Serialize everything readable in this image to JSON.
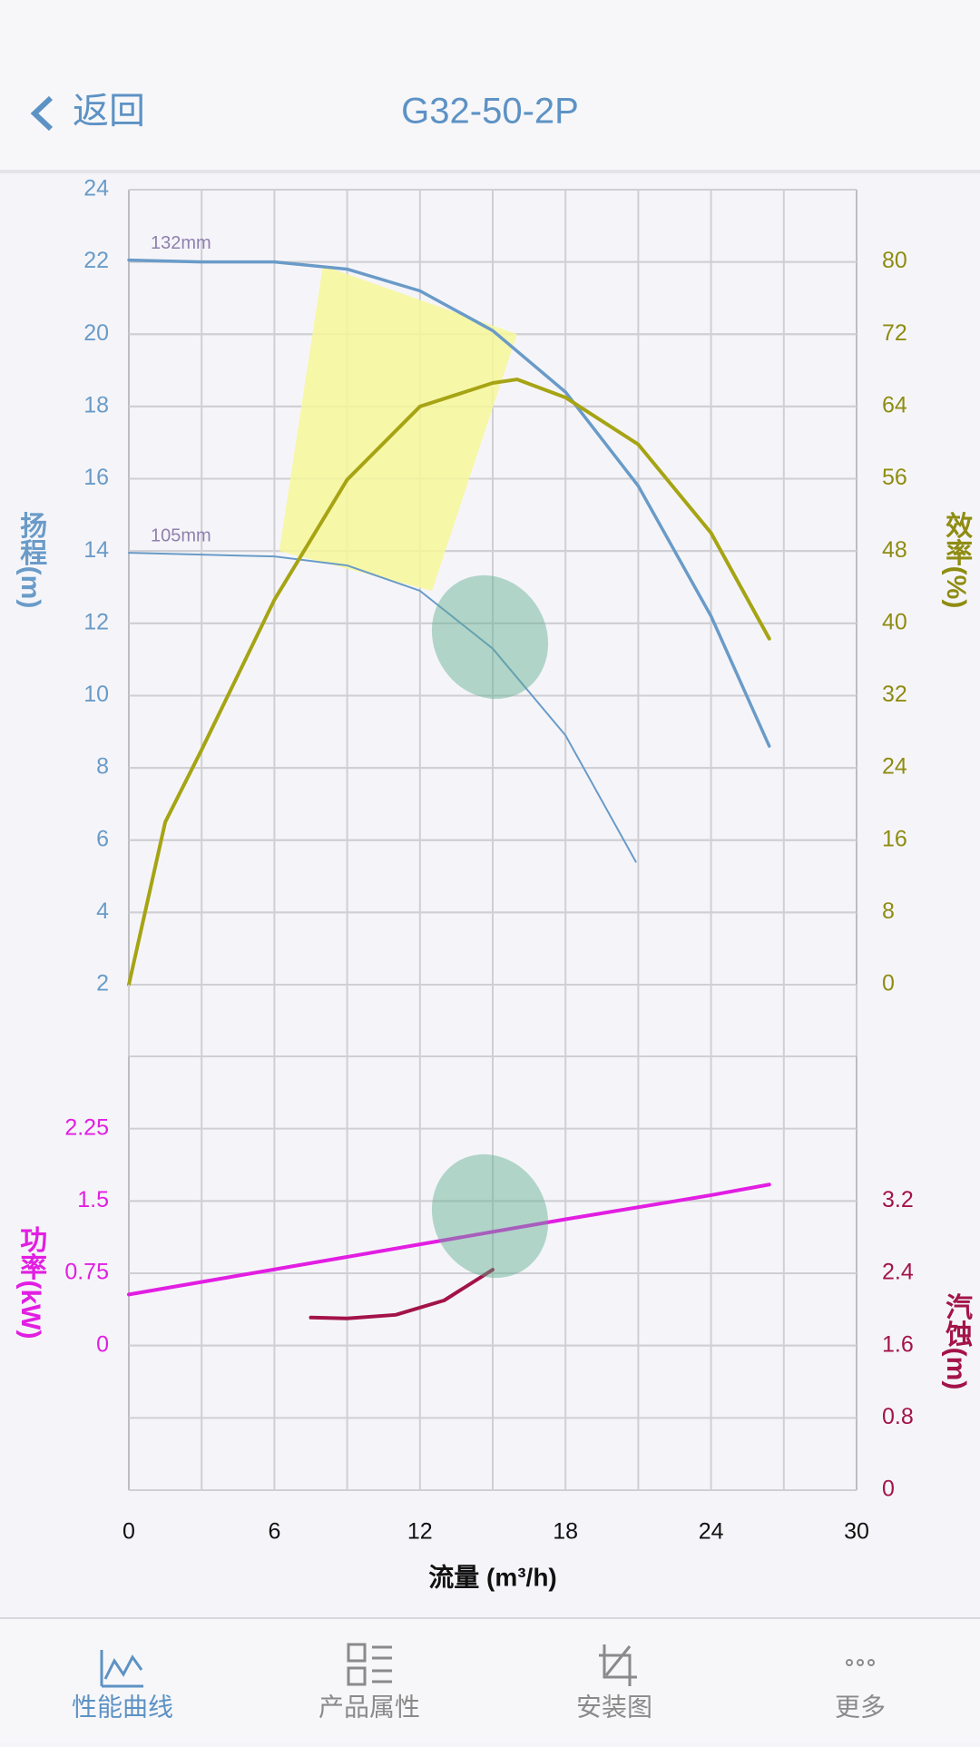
{
  "header": {
    "back": "返回",
    "title": "G32-50-2P"
  },
  "chart_data": [
    {
      "type": "line",
      "ylabel": "扬程(m)",
      "y2label": "效率(%)",
      "xlim": [
        0,
        30
      ],
      "xticks": [
        0,
        6,
        12,
        18,
        24,
        30
      ],
      "ylim": [
        2,
        24
      ],
      "yticks": [
        2,
        4,
        6,
        8,
        10,
        12,
        14,
        16,
        18,
        20,
        22,
        24
      ],
      "ycolor": "#6a9bc8",
      "y2lim": [
        0,
        88
      ],
      "y2ticks": [
        0,
        8,
        16,
        24,
        32,
        40,
        48,
        56,
        64,
        72,
        80
      ],
      "y2color": "#8f8c12",
      "grid": true,
      "operating_region": {
        "color": "#f7f79a",
        "x": [
          8,
          16,
          12.5,
          6.2
        ],
        "y": [
          21.9,
          20.0,
          12.9,
          14.0
        ]
      },
      "series": [
        {
          "name": "132mm",
          "color": "#6a9bc8",
          "width": 3.5,
          "x": [
            0,
            3,
            6,
            9,
            12,
            15,
            18,
            21,
            24,
            26.4
          ],
          "values": [
            22.05,
            22.0,
            22.0,
            21.8,
            21.2,
            20.1,
            18.4,
            15.8,
            12.2,
            8.6
          ]
        },
        {
          "name": "105mm",
          "color": "#6a9bc8",
          "width": 2,
          "x": [
            0,
            3,
            6,
            9,
            12,
            15,
            18,
            20.9
          ],
          "values": [
            13.95,
            13.9,
            13.85,
            13.6,
            12.9,
            11.3,
            8.9,
            5.4
          ]
        },
        {
          "color": "#a6a414",
          "width": 4,
          "axis": "y2",
          "x": [
            0,
            1.5,
            3,
            6,
            9,
            12,
            15,
            16,
            18,
            21,
            24,
            26.4
          ],
          "values": [
            0,
            18,
            26,
            42.6,
            55.9,
            64,
            66.6,
            67,
            65,
            59.8,
            50,
            38.3
          ]
        }
      ]
    },
    {
      "type": "line",
      "ylabel": "功率(kW)",
      "y2label": "汽蚀(m)",
      "xlabel": "流量 (m³/h)",
      "xlim": [
        0,
        30
      ],
      "xticks": [
        0,
        6,
        12,
        18,
        24,
        30
      ],
      "ylim": [
        -1.5,
        3.0
      ],
      "yticks": [
        0,
        0.75,
        1.5,
        2.25
      ],
      "ycolor": "#e21ee2",
      "y2lim": [
        0,
        4.8
      ],
      "y2ticks": [
        0,
        0.8,
        1.6,
        2.4,
        3.2
      ],
      "y2color": "#a3134a",
      "grid": true,
      "series": [
        {
          "color": "#e21ee2",
          "width": 4,
          "x": [
            0,
            6,
            12,
            18,
            24,
            26.4
          ],
          "values": [
            0.53,
            0.79,
            1.05,
            1.31,
            1.56,
            1.67
          ]
        },
        {
          "color": "#a3134a",
          "width": 4,
          "axis": "y2",
          "x": [
            7.5,
            9,
            11,
            13,
            15
          ],
          "values": [
            1.91,
            1.9,
            1.94,
            2.1,
            2.44
          ]
        }
      ]
    }
  ],
  "tabs": [
    "性能曲线",
    "产品属性",
    "安装图",
    "更多"
  ]
}
